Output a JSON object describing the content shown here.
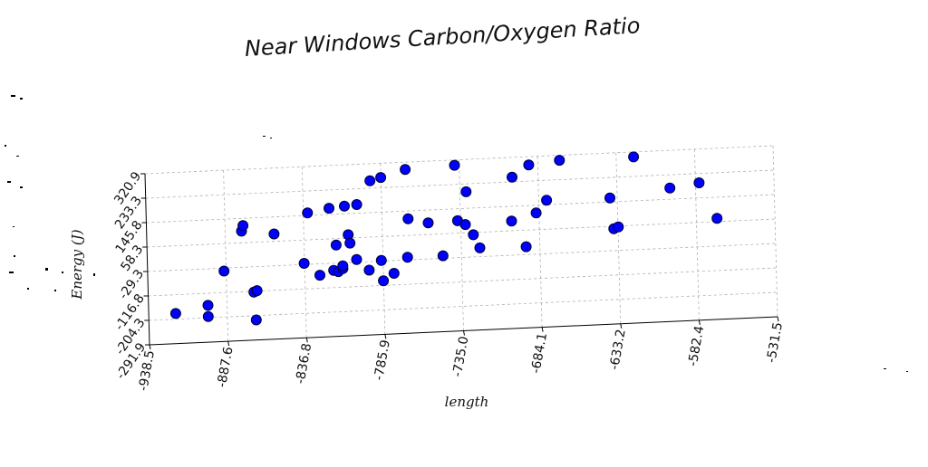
{
  "chart_data": {
    "type": "scatter",
    "title": "Near Windows Carbon/Oxygen Ratio",
    "xlabel": "length",
    "ylabel": "Energy (J)",
    "x_ticks": [
      "-938.5",
      "-887.6",
      "-836.8",
      "-785.9",
      "-735.0",
      "-684.1",
      "-633.2",
      "-582.4",
      "-531.5"
    ],
    "y_ticks": [
      "-291.9",
      "-204.3",
      "-116.8",
      "-29.3",
      "58.3",
      "145.8",
      "233.3",
      "320.9"
    ],
    "xlim": [
      -938.5,
      -531.5
    ],
    "ylim": [
      -291.9,
      320.9
    ],
    "grid": true,
    "marker_color": "#0000ff",
    "x": [
      -921,
      -900,
      -900,
      -889,
      -877,
      -876,
      -870,
      -869,
      -868,
      -856,
      -837,
      -834,
      -827,
      -820,
      -818,
      -816,
      -815,
      -812,
      -812,
      -810,
      -808,
      -807,
      -803,
      -802,
      -795,
      -793,
      -787,
      -786,
      -786,
      -779,
      -770,
      -769,
      -770,
      -756,
      -747,
      -738,
      -737,
      -732,
      -731,
      -727,
      -723,
      -701,
      -702,
      -693,
      -690,
      -686,
      -679,
      -670,
      -638,
      -636,
      -633,
      -622,
      -599,
      -580,
      -569
    ],
    "y": [
      -184,
      -160,
      -200,
      -40,
      100,
      120,
      -120,
      -220,
      -115,
      85,
      -25,
      155,
      -70,
      168,
      -55,
      35,
      -60,
      -50,
      -40,
      173,
      70,
      40,
      -20,
      177,
      -60,
      260,
      -27,
      270,
      -100,
      -75,
      -20,
      118,
      295,
      100,
      -20,
      302,
      103,
      88,
      205,
      50,
      2,
      250,
      93,
      -1,
      291,
      118,
      162,
      303,
      160,
      49,
      55,
      303,
      186,
      200,
      70
    ]
  }
}
